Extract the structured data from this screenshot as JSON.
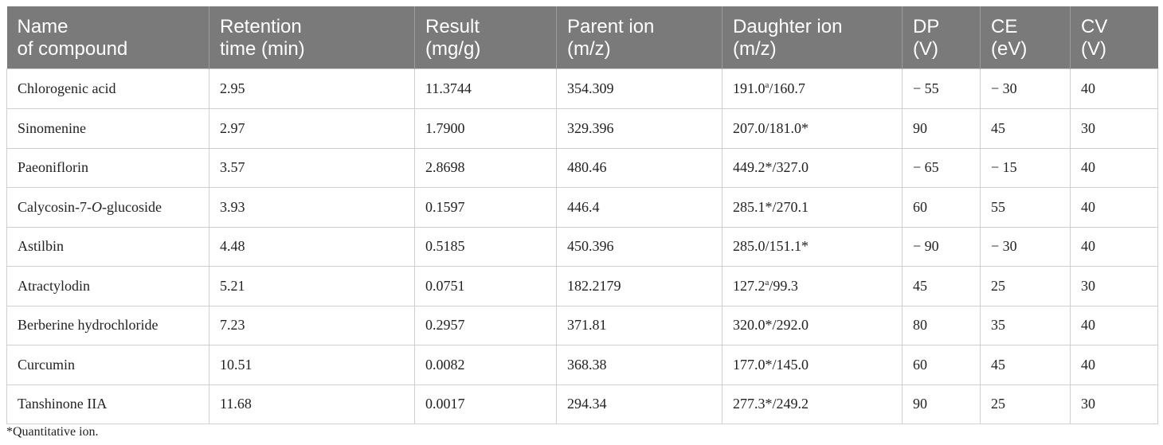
{
  "table": {
    "headers": [
      "Name\nof compound",
      "Retention\ntime (min)",
      "Result\n(mg/g)",
      "Parent ion\n(m/z)",
      "Daughter ion\n(m/z)",
      "DP\n(V)",
      "CE\n(eV)",
      "CV\n(V)"
    ],
    "rows": [
      {
        "name": "Chlorogenic acid",
        "rt": "2.95",
        "result": "11.3744",
        "parent": "354.309",
        "daughter_a": "191.0",
        "daughter_sup": "a",
        "daughter_b": "/160.7",
        "dp": "− 55",
        "ce": "− 30",
        "cv": "40"
      },
      {
        "name": "Sinomenine",
        "rt": "2.97",
        "result": "1.7900",
        "parent": "329.396",
        "daughter_a": "207.0/181.0*",
        "daughter_sup": "",
        "daughter_b": "",
        "dp": "90",
        "ce": "45",
        "cv": "30"
      },
      {
        "name": "Paeoniflorin",
        "rt": "3.57",
        "result": "2.8698",
        "parent": "480.46",
        "daughter_a": "449.2*/327.0",
        "daughter_sup": "",
        "daughter_b": "",
        "dp": "− 65",
        "ce": "− 15",
        "cv": "40"
      },
      {
        "name": "Calycosin-7-O-glucoside",
        "rt": "3.93",
        "result": "0.1597",
        "parent": "446.4",
        "daughter_a": "285.1*/270.1",
        "daughter_sup": "",
        "daughter_b": "",
        "dp": "60",
        "ce": "55",
        "cv": "40"
      },
      {
        "name": "Astilbin",
        "rt": "4.48",
        "result": "0.5185",
        "parent": "450.396",
        "daughter_a": "285.0/151.1*",
        "daughter_sup": "",
        "daughter_b": "",
        "dp": "− 90",
        "ce": "− 30",
        "cv": "40"
      },
      {
        "name": "Atractylodin",
        "rt": "5.21",
        "result": "0.0751",
        "parent": "182.2179",
        "daughter_a": "127.2",
        "daughter_sup": "a",
        "daughter_b": "/99.3",
        "dp": "45",
        "ce": "25",
        "cv": "30"
      },
      {
        "name": "Berberine hydrochloride",
        "rt": "7.23",
        "result": "0.2957",
        "parent": "371.81",
        "daughter_a": "320.0*/292.0",
        "daughter_sup": "",
        "daughter_b": "",
        "dp": "80",
        "ce": "35",
        "cv": "40"
      },
      {
        "name": "Curcumin",
        "rt": "10.51",
        "result": "0.0082",
        "parent": "368.38",
        "daughter_a": "177.0*/145.0",
        "daughter_sup": "",
        "daughter_b": "",
        "dp": "60",
        "ce": "45",
        "cv": "40"
      },
      {
        "name": "Tanshinone IIA",
        "rt": "11.68",
        "result": "0.0017",
        "parent": "294.34",
        "daughter_a": "277.3*/249.2",
        "daughter_sup": "",
        "daughter_b": "",
        "dp": "90",
        "ce": "25",
        "cv": "30"
      }
    ]
  },
  "footnote": "*Quantitative ion.",
  "colors": {
    "header_bg": "#7a7a7a",
    "header_text": "#ffffff",
    "grid": "#cfcfcf"
  }
}
